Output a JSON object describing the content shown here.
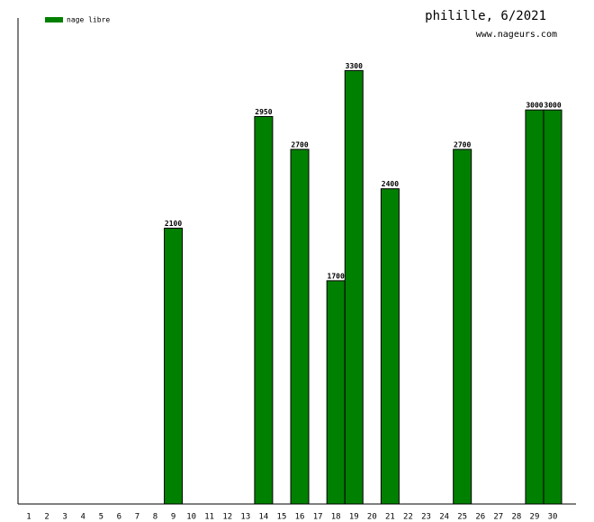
{
  "chart_data": {
    "type": "bar",
    "title": "philille, 6/2021",
    "subtitle": "www.nageurs.com",
    "categories": [
      "1",
      "2",
      "3",
      "4",
      "5",
      "6",
      "7",
      "8",
      "9",
      "10",
      "11",
      "12",
      "13",
      "14",
      "15",
      "16",
      "17",
      "18",
      "19",
      "20",
      "21",
      "22",
      "23",
      "24",
      "25",
      "26",
      "27",
      "28",
      "29",
      "30"
    ],
    "series": [
      {
        "name": "nage libre",
        "color": "#008000",
        "values": [
          null,
          null,
          null,
          null,
          null,
          null,
          null,
          null,
          2100,
          null,
          null,
          null,
          null,
          2950,
          null,
          2700,
          null,
          1700,
          3300,
          null,
          2400,
          null,
          null,
          null,
          2700,
          null,
          null,
          null,
          3000,
          3000
        ]
      }
    ],
    "ylim": [
      0,
      3700
    ]
  }
}
